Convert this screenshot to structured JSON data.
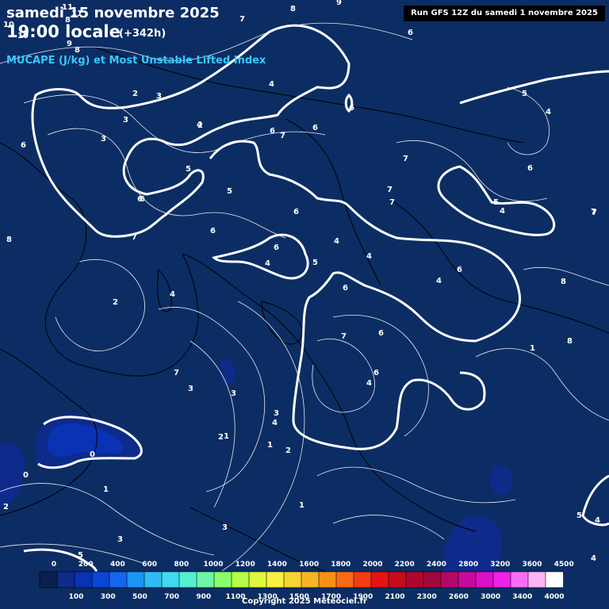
{
  "header": {
    "date": "samedi 15 novembre 2025",
    "time": "19:00 locale",
    "offset": "(+342h)",
    "title": "MUCAPE (J/kg) et Most Unstable Lifted Index",
    "run": "Run GFS 12Z du samedi 1 novembre 2025"
  },
  "footer": {
    "copyright": "Copyright 2025 Meteociel.fr"
  },
  "colors": {
    "background": "#0c2d63",
    "header_text": "#ffffff",
    "title_text": "#38c8ff",
    "run_box": "#000000",
    "contour": "#ffffff",
    "coast": "#000000"
  },
  "legend": {
    "top_labels": [
      "0",
      "200",
      "400",
      "600",
      "800",
      "1000",
      "1200",
      "1400",
      "1600",
      "1800",
      "2000",
      "2200",
      "2400",
      "2800",
      "3200",
      "3600",
      "4500"
    ],
    "bottom_labels": [
      "100",
      "300",
      "500",
      "700",
      "900",
      "1100",
      "1300",
      "1500",
      "1700",
      "1900",
      "2100",
      "2300",
      "2600",
      "3000",
      "3400",
      "4000"
    ],
    "colors": [
      "#0c1f4e",
      "#0e2a8a",
      "#0a32b4",
      "#0a45d8",
      "#1466f0",
      "#1e94f5",
      "#2fbcf5",
      "#41d9f0",
      "#55f0d0",
      "#6bf7a4",
      "#8afc6e",
      "#b6fc46",
      "#e0f83a",
      "#f8f040",
      "#f8d432",
      "#f8b424",
      "#f89018",
      "#f86a14",
      "#f43c14",
      "#e41414",
      "#c80a1e",
      "#b0062e",
      "#a0083e",
      "#b40868",
      "#c80a9a",
      "#dc10c8",
      "#f020e8",
      "#f86ef4",
      "#fcb4f8",
      "#ffffff"
    ]
  },
  "lifted_index_labels": [
    "11",
    "11",
    "8",
    "8",
    "9",
    "7",
    "10",
    "10",
    "9",
    "8",
    "6",
    "6",
    "6",
    "5",
    "2",
    "3",
    "3",
    "3",
    "2",
    "6",
    "4",
    "7",
    "6",
    "6",
    "5",
    "6",
    "6",
    "4",
    "7",
    "7",
    "5",
    "4",
    "4",
    "6",
    "5",
    "4",
    "7",
    "6",
    "4",
    "8",
    "4",
    "6",
    "6",
    "2",
    "4",
    "6",
    "5",
    "4",
    "3",
    "7",
    "7",
    "6",
    "6",
    "4",
    "7",
    "8",
    "1",
    "3",
    "4",
    "3",
    "2",
    "1",
    "2",
    "1",
    "0",
    "0",
    "1",
    "1",
    "3",
    "3",
    "5",
    "8",
    "7",
    "5",
    "7",
    "4",
    "2",
    "4"
  ]
}
